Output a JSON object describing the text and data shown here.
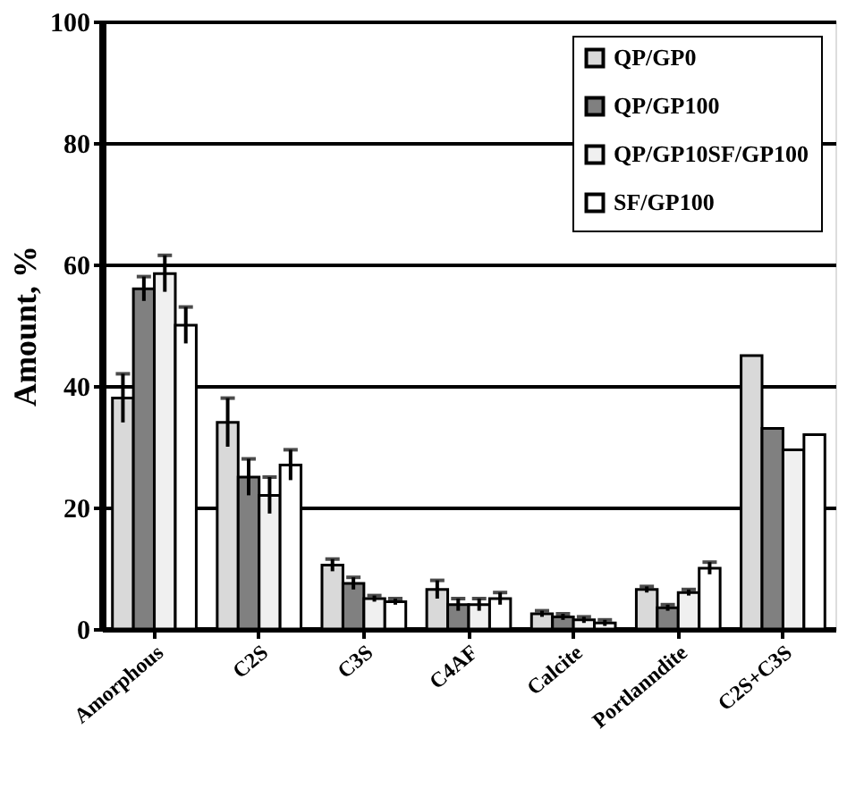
{
  "chart_data": {
    "type": "bar",
    "ylabel": "Amount, %",
    "categories": [
      "Amorphous",
      "C2S",
      "C3S",
      "C4AF",
      "Calcite",
      "Portlanndite",
      "C2S+C3S"
    ],
    "series": [
      {
        "name": "QP/GP0",
        "color": "#d9d9d9",
        "values": [
          38,
          34,
          10.5,
          6.5,
          2.5,
          6.5,
          45
        ],
        "errors": [
          4,
          4,
          1,
          1.5,
          0.5,
          0.5,
          null
        ]
      },
      {
        "name": "QP/GP100",
        "color": "#808080",
        "values": [
          56,
          25,
          7.5,
          4,
          2,
          3.5,
          33
        ],
        "errors": [
          2,
          3,
          1,
          1,
          0.5,
          0.5,
          null
        ]
      },
      {
        "name": "QP/GP10SF/GP100",
        "color": "#f0f0f0",
        "values": [
          58.5,
          22,
          5,
          4,
          1.5,
          6,
          29.5
        ],
        "errors": [
          3,
          3,
          0.5,
          1,
          0.5,
          0.5,
          null
        ]
      },
      {
        "name": "SF/GP100",
        "color": "#ffffff",
        "values": [
          50,
          27,
          4.5,
          5,
          1,
          10,
          32
        ],
        "errors": [
          3,
          2.5,
          0.5,
          1,
          0.5,
          1,
          null
        ]
      }
    ],
    "ylim": [
      0,
      100
    ],
    "yticks": [
      0,
      20,
      40,
      60,
      80,
      100
    ],
    "grid": "y",
    "legend": "top right"
  }
}
